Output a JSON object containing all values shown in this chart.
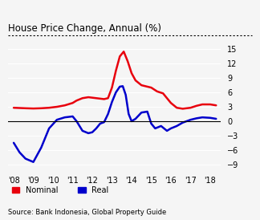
{
  "title": "House Price Change, Annual (%)",
  "source": "Source: Bank Indonesia, Global Property Guide",
  "yticks": [
    -9,
    -6,
    -3,
    0,
    3,
    6,
    9,
    12,
    15
  ],
  "ylim": [
    -10.5,
    17.0
  ],
  "xlim": [
    2007.7,
    2018.55
  ],
  "xtick_positions": [
    2008,
    2009,
    2010,
    2011,
    2012,
    2013,
    2014,
    2015,
    2016,
    2017,
    2018
  ],
  "xtick_labels": [
    "'08",
    "'09",
    "'10",
    "'11",
    "'12",
    "'13",
    "'14",
    "'15",
    "'16",
    "'17",
    "'18"
  ],
  "nominal_color": "#e8000d",
  "real_color": "#0000cc",
  "background_color": "#f5f5f5",
  "grid_color": "#ffffff",
  "nominal_x": [
    2008.0,
    2008.3,
    2008.6,
    2009.0,
    2009.4,
    2009.8,
    2010.2,
    2010.6,
    2011.0,
    2011.2,
    2011.5,
    2011.8,
    2012.0,
    2012.2,
    2012.4,
    2012.6,
    2012.8,
    2013.0,
    2013.2,
    2013.4,
    2013.6,
    2013.8,
    2014.0,
    2014.2,
    2014.5,
    2014.8,
    2015.0,
    2015.3,
    2015.6,
    2016.0,
    2016.3,
    2016.6,
    2017.0,
    2017.3,
    2017.6,
    2018.0,
    2018.3
  ],
  "nominal_y": [
    2.8,
    2.75,
    2.7,
    2.65,
    2.7,
    2.8,
    3.0,
    3.3,
    3.8,
    4.3,
    4.8,
    5.0,
    4.9,
    4.8,
    4.7,
    4.6,
    4.8,
    7.0,
    10.5,
    13.5,
    14.5,
    12.5,
    10.0,
    8.5,
    7.5,
    7.2,
    7.0,
    6.2,
    5.8,
    3.8,
    2.8,
    2.6,
    2.8,
    3.2,
    3.5,
    3.5,
    3.3
  ],
  "real_x": [
    2008.0,
    2008.3,
    2008.6,
    2009.0,
    2009.4,
    2009.8,
    2010.2,
    2010.6,
    2011.0,
    2011.2,
    2011.5,
    2011.8,
    2012.0,
    2012.2,
    2012.4,
    2012.6,
    2012.8,
    2013.0,
    2013.2,
    2013.4,
    2013.55,
    2013.7,
    2013.85,
    2014.0,
    2014.2,
    2014.5,
    2014.8,
    2015.0,
    2015.2,
    2015.5,
    2015.8,
    2016.0,
    2016.3,
    2016.6,
    2017.0,
    2017.3,
    2017.6,
    2018.0,
    2018.3
  ],
  "real_y": [
    -4.5,
    -6.5,
    -7.8,
    -8.5,
    -5.5,
    -1.5,
    0.3,
    0.8,
    1.0,
    0.0,
    -2.0,
    -2.5,
    -2.3,
    -1.5,
    -0.5,
    -0.2,
    1.5,
    4.0,
    6.0,
    7.2,
    7.3,
    5.5,
    1.5,
    0.0,
    0.5,
    1.8,
    2.0,
    -0.5,
    -1.5,
    -1.0,
    -2.0,
    -1.5,
    -1.0,
    -0.3,
    0.3,
    0.6,
    0.8,
    0.7,
    0.5
  ]
}
